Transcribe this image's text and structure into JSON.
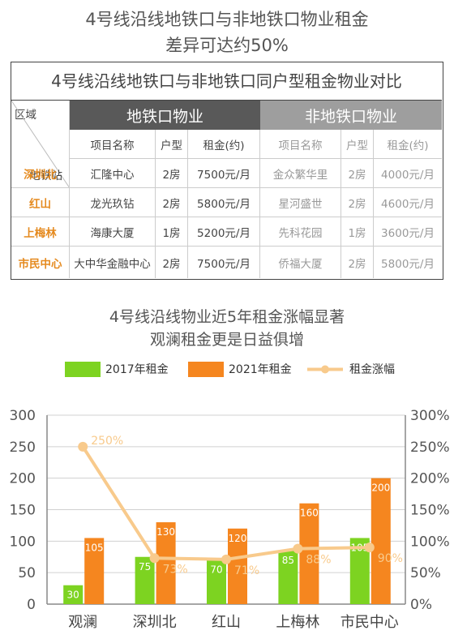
{
  "title": {
    "line1": "4号线沿线地铁口与非地铁口物业租金",
    "line2": "差异可达约50%"
  },
  "table": {
    "caption": "4号线沿线地铁口与非地铁口同户型租金物业对比",
    "corner_top": "区域",
    "corner_bottom": "地铁站",
    "metro_header": "地铁口物业",
    "non_metro_header": "非地铁口物业",
    "col_name": "项目名称",
    "col_type": "户型",
    "col_rent": "租金(约)",
    "rows": [
      {
        "station": "深圳北",
        "m_name": "汇隆中心",
        "m_type": "2房",
        "m_rent": "7500元/月",
        "n_name": "金众繁华里",
        "n_type": "2房",
        "n_rent": "4000元/月"
      },
      {
        "station": "红山",
        "m_name": "龙光玖钻",
        "m_type": "2房",
        "m_rent": "5800元/月",
        "n_name": "星河盛世",
        "n_type": "2房",
        "n_rent": "4600元/月"
      },
      {
        "station": "上梅林",
        "m_name": "海康大厦",
        "m_type": "1房",
        "m_rent": "5200元/月",
        "n_name": "先科花园",
        "n_type": "1房",
        "n_rent": "3600元/月"
      },
      {
        "station": "市民中心",
        "m_name": "大中华金融中心",
        "m_type": "2房",
        "m_rent": "7500元/月",
        "n_name": "侨福大厦",
        "n_type": "2房",
        "n_rent": "5800元/月"
      }
    ]
  },
  "chart_title": {
    "line1": "4号线沿线物业近5年租金涨幅显著",
    "line2": "观澜租金更是日益俱增"
  },
  "colors": {
    "green": "#7dd321",
    "orange": "#f5861f",
    "line": "#f8ca8c",
    "grid": "#d0d0d0"
  },
  "chart_data": {
    "type": "bar",
    "categories": [
      "观澜",
      "深圳北",
      "红山",
      "上梅林",
      "市民中心"
    ],
    "series": [
      {
        "name": "2017年租金",
        "values": [
          30,
          75,
          70,
          85,
          105
        ],
        "labels": [
          "30",
          "75",
          "70",
          "85",
          "105"
        ]
      },
      {
        "name": "2021年租金",
        "values": [
          105,
          130,
          120,
          160,
          200
        ],
        "labels": [
          "105",
          "130",
          "120",
          "160",
          "200"
        ]
      }
    ],
    "line_series": {
      "name": "租金涨幅",
      "values": [
        250,
        73,
        71,
        88,
        90
      ],
      "labels": [
        "250%",
        "73%",
        "71%",
        "88%",
        "90%"
      ]
    },
    "ylim": [
      0,
      300
    ],
    "yticks": [
      "0",
      "50",
      "100",
      "150",
      "200",
      "250",
      "300"
    ],
    "y2lim": [
      0,
      300
    ],
    "y2ticks": [
      "0%",
      "50%",
      "100%",
      "150%",
      "200%",
      "250%",
      "300%"
    ],
    "grid": true,
    "legend": "top"
  }
}
